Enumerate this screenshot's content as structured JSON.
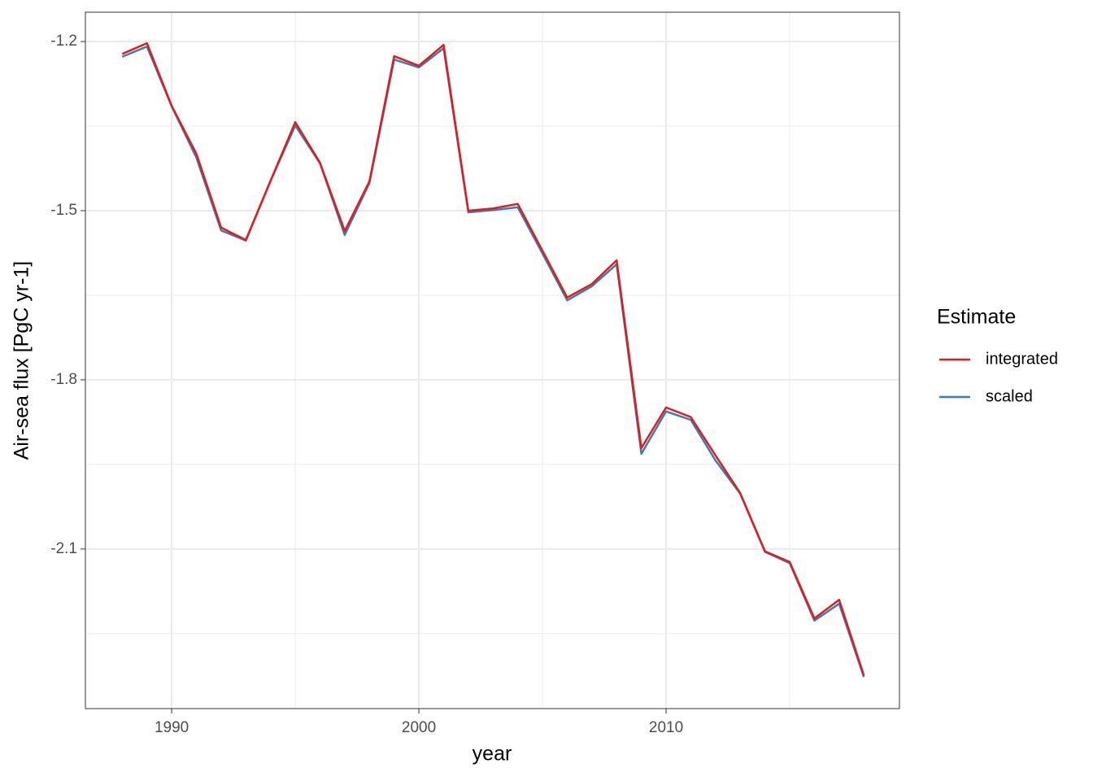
{
  "chart_data": {
    "type": "line",
    "x_label": "year",
    "y_label": "Air-sea flux [PgC yr-1]",
    "legend_title": "Estimate",
    "x": [
      1988,
      1989,
      1990,
      1991,
      1992,
      1993,
      1994,
      1995,
      1996,
      1997,
      1998,
      1999,
      2000,
      2001,
      2002,
      2003,
      2004,
      2005,
      2006,
      2007,
      2008,
      2009,
      2010,
      2011,
      2012,
      2013,
      2014,
      2015,
      2016,
      2017,
      2018
    ],
    "series": [
      {
        "name": "integrated",
        "color": "#e41a1c",
        "values": [
          -1.222,
          -1.203,
          -1.314,
          -1.399,
          -1.53,
          -1.552,
          -1.447,
          -1.343,
          -1.415,
          -1.536,
          -1.448,
          -1.226,
          -1.243,
          -1.206,
          -1.5,
          -1.496,
          -1.488,
          -1.571,
          -1.654,
          -1.63,
          -1.588,
          -1.921,
          -1.849,
          -1.866,
          -1.934,
          -2.001,
          -2.104,
          -2.123,
          -2.223,
          -2.19,
          -2.324
        ]
      },
      {
        "name": "scaled",
        "color": "#377eb8",
        "values": [
          -1.227,
          -1.209,
          -1.315,
          -1.406,
          -1.535,
          -1.553,
          -1.447,
          -1.349,
          -1.416,
          -1.543,
          -1.451,
          -1.232,
          -1.246,
          -1.212,
          -1.503,
          -1.499,
          -1.494,
          -1.576,
          -1.659,
          -1.634,
          -1.595,
          -1.931,
          -1.856,
          -1.871,
          -1.943,
          -2.002,
          -2.105,
          -2.125,
          -2.227,
          -2.197,
          -2.327
        ]
      }
    ],
    "xlim": [
      1986.51,
      2019.44
    ],
    "xticks": [
      1990,
      2000,
      2010
    ],
    "ylim": [
      -2.383,
      -1.148
    ],
    "yticks": [
      -1.2,
      -1.5,
      -1.8,
      -2.1
    ],
    "grid": true,
    "legend_position": "right"
  }
}
